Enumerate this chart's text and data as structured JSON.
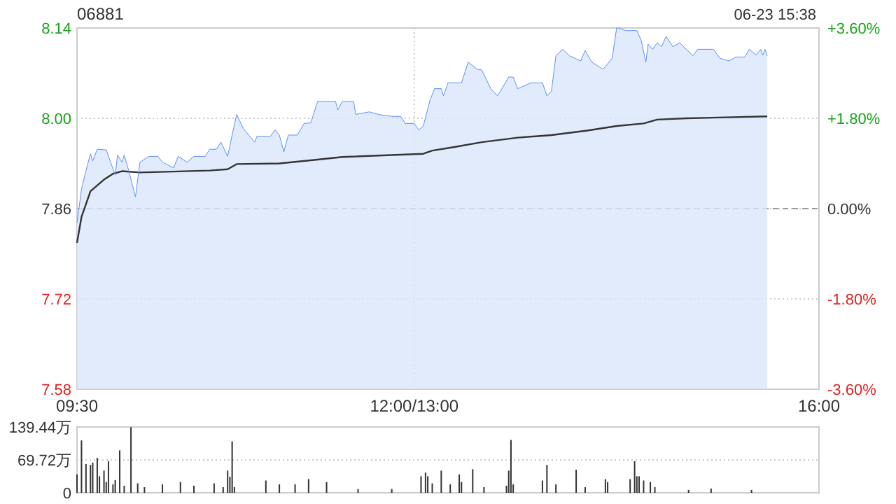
{
  "chart_data": [
    {
      "type": "line",
      "title": "06881",
      "annotations": [
        "06-23 15:38"
      ],
      "categories": [
        "09:30",
        null,
        null,
        null,
        null,
        null,
        null,
        null,
        null,
        null,
        null,
        null,
        null,
        null,
        null,
        null,
        null,
        null,
        null,
        null,
        null,
        null,
        null,
        null,
        null,
        null,
        null,
        null,
        null,
        null,
        null,
        null,
        null,
        null,
        null,
        null,
        null,
        null,
        null,
        null,
        null,
        null,
        null,
        null,
        null,
        null,
        null,
        null,
        null,
        null,
        null,
        null,
        null,
        null,
        null,
        null,
        null,
        null,
        null,
        null,
        null,
        null,
        null,
        null,
        null,
        null,
        null,
        null,
        null,
        null,
        null,
        null,
        null,
        null,
        null,
        null,
        null,
        null,
        null,
        null,
        null,
        null,
        null,
        null,
        null,
        null,
        null,
        null,
        null,
        null,
        null,
        null,
        null,
        null,
        null,
        null,
        null,
        null,
        null,
        null,
        null,
        null,
        null,
        null,
        null,
        null,
        null,
        null,
        null,
        null,
        null,
        null,
        null,
        null,
        null,
        null,
        null,
        null,
        null,
        null,
        null,
        null,
        null,
        null,
        null,
        null,
        null,
        null,
        null,
        null,
        null,
        null,
        null,
        null,
        null,
        null,
        null,
        null,
        null,
        null,
        null,
        null,
        null,
        null,
        null,
        null,
        null,
        null,
        null,
        null,
        "12:00/13:00",
        null,
        null,
        null,
        null,
        null,
        null,
        null,
        null,
        null,
        null,
        null,
        null,
        null,
        null,
        null,
        null,
        null,
        null,
        null,
        null,
        null,
        null,
        null,
        null,
        null,
        null,
        null,
        null,
        null,
        null,
        null,
        null,
        null,
        null,
        null,
        null,
        null,
        null,
        null,
        null,
        null,
        null,
        null,
        null,
        null,
        null,
        null,
        null,
        null,
        null,
        null,
        null,
        null,
        null,
        null,
        null,
        null,
        null,
        null,
        null,
        null,
        null,
        null,
        null,
        null,
        null,
        null,
        null,
        null,
        null,
        null,
        null,
        null,
        null,
        null,
        null,
        null,
        null,
        null,
        null,
        null,
        null,
        null,
        null,
        null,
        null,
        null,
        null,
        null,
        null,
        null,
        null,
        null,
        null,
        null,
        null,
        null,
        null,
        null,
        null,
        null,
        null,
        null,
        null,
        null,
        null,
        null,
        null,
        null,
        null,
        null,
        null,
        null,
        null,
        null,
        null,
        null,
        null,
        null,
        null,
        null,
        null,
        null,
        null,
        null,
        null,
        null,
        null,
        null,
        null,
        null,
        null,
        null,
        null,
        null,
        null,
        null,
        null,
        null,
        null,
        null,
        null,
        null,
        null,
        null,
        null,
        null,
        null,
        null,
        null,
        null,
        null,
        null,
        null,
        null,
        null,
        null,
        null,
        null,
        null,
        null,
        null,
        null,
        null,
        null,
        null,
        null,
        null,
        null,
        null,
        null,
        null,
        null,
        null,
        null,
        null,
        null,
        null,
        null,
        "16:00"
      ],
      "ylim": [
        7.58,
        8.14
      ],
      "y2lim": [
        -3.6,
        3.6
      ],
      "yticks": [
        {
          "value": 7.58,
          "label": "7.58"
        },
        {
          "value": 7.72,
          "label": "7.72"
        },
        {
          "value": 7.86,
          "label": "7.86"
        },
        {
          "value": 8.0,
          "label": "8.00"
        },
        {
          "value": 8.14,
          "label": "8.14"
        }
      ],
      "y2ticks": [
        {
          "value": -3.6,
          "label": "-3.60%"
        },
        {
          "value": -1.8,
          "label": "-1.80%"
        },
        {
          "value": 0,
          "label": "0.00%"
        },
        {
          "value": 1.8,
          "label": "+1.80%"
        },
        {
          "value": 3.6,
          "label": "+3.60%"
        }
      ],
      "grid": true,
      "ref_lines": [
        {
          "axis": "y",
          "value": 7.86,
          "line_style": "dashed",
          "color": "#999999"
        }
      ],
      "series": [
        {
          "type": "area",
          "color": "#5b8ff9",
          "values": [
            7.838,
            null,
            7.89,
            null,
            7.919,
            null,
            7.945,
            7.934,
            null,
            7.952,
            null,
            null,
            null,
            7.951,
            null,
            null,
            null,
            7.912,
            7.943,
            null,
            7.932,
            7.943,
            null,
            7.919,
            null,
            null,
            7.878,
            null,
            7.932,
            null,
            null,
            null,
            7.941,
            null,
            null,
            null,
            7.941,
            null,
            7.932,
            null,
            null,
            null,
            null,
            7.923,
            null,
            7.941,
            null,
            null,
            null,
            7.932,
            null,
            null,
            7.941,
            null,
            null,
            null,
            null,
            7.941,
            null,
            7.952,
            null,
            null,
            7.952,
            null,
            7.963,
            null,
            null,
            7.941,
            null,
            7.974,
            null,
            8.006,
            null,
            null,
            7.984,
            null,
            null,
            null,
            null,
            7.963,
            7.972,
            null,
            null,
            null,
            null,
            null,
            7.972,
            null,
            7.982,
            null,
            7.974,
            null,
            7.948,
            null,
            7.974,
            null,
            null,
            null,
            7.974,
            null,
            null,
            7.992,
            null,
            null,
            7.993,
            null,
            null,
            8.026,
            null,
            null,
            null,
            null,
            null,
            null,
            null,
            8.026,
            8.013,
            null,
            8.026,
            null,
            null,
            null,
            null,
            8.026,
            8.006,
            null,
            null,
            null,
            null,
            null,
            8.01,
            null,
            null,
            null,
            8.006,
            null,
            null,
            null,
            null,
            null,
            8.003,
            null,
            null,
            null,
            8.003,
            null,
            7.992,
            null,
            null,
            null,
            7.992,
            null,
            7.982,
            null,
            7.988,
            null,
            null,
            8.028,
            null,
            8.046,
            null,
            null,
            8.046,
            8.035,
            null,
            8.055,
            null,
            null,
            null,
            null,
            null,
            8.055,
            null,
            null,
            8.087,
            null,
            null,
            null,
            8.076,
            null,
            8.075,
            null,
            null,
            null,
            8.046,
            null,
            null,
            8.035,
            null,
            8.046,
            null,
            null,
            8.064,
            null,
            8.064,
            null,
            8.046,
            null,
            null,
            null,
            null,
            null,
            8.055,
            null,
            null,
            null,
            null,
            8.055,
            null,
            8.035,
            null,
            8.042,
            null,
            8.097,
            null,
            null,
            8.107,
            null,
            null,
            8.097,
            null,
            null,
            null,
            null,
            8.089,
            null,
            8.105,
            null,
            null,
            8.087,
            null,
            null,
            null,
            null,
            8.076,
            null,
            null,
            null,
            8.093,
            null,
            8.14,
            8.14,
            null,
            null,
            8.136,
            null,
            null,
            null,
            null,
            8.136,
            null,
            8.12,
            null,
            8.087,
            8.115,
            null,
            8.107,
            null,
            8.117,
            null,
            8.111,
            null,
            8.127,
            null,
            null,
            8.111,
            null,
            null,
            8.117,
            null,
            null,
            null,
            null,
            null,
            8.097,
            null,
            8.107,
            null,
            null,
            null,
            null,
            null,
            null,
            8.107,
            null,
            null,
            8.093,
            null,
            null,
            null,
            8.089,
            null,
            null,
            8.095,
            null,
            null,
            null,
            8.095,
            null,
            8.107,
            null,
            null,
            8.098,
            null,
            8.107,
            8.098,
            8.107,
            8.097,
            null,
            null,
            null,
            null,
            null,
            null,
            null,
            null,
            null,
            null,
            null,
            null,
            null,
            null,
            null,
            null,
            null,
            null,
            null,
            null,
            null,
            null,
            null
          ]
        },
        {
          "type": "line",
          "color": "#333333",
          "values": [
            7.807,
            null,
            7.847,
            null,
            null,
            null,
            7.887,
            null,
            null,
            null,
            null,
            null,
            7.905,
            null,
            null,
            null,
            7.914,
            null,
            null,
            null,
            7.918,
            null,
            null,
            null,
            null,
            null,
            null,
            null,
            7.916,
            null,
            null,
            null,
            null,
            null,
            null,
            null,
            null,
            null,
            null,
            null,
            null,
            null,
            null,
            null,
            null,
            null,
            null,
            null,
            null,
            null,
            null,
            null,
            null,
            null,
            null,
            null,
            null,
            null,
            null,
            7.919,
            null,
            null,
            null,
            null,
            null,
            null,
            null,
            7.921,
            null,
            null,
            null,
            7.929,
            null,
            null,
            null,
            null,
            null,
            null,
            null,
            null,
            null,
            null,
            null,
            null,
            null,
            null,
            null,
            null,
            null,
            null,
            7.93,
            null,
            null,
            null,
            null,
            null,
            null,
            null,
            null,
            null,
            null,
            null,
            null,
            null,
            null,
            null,
            null,
            7.936,
            null,
            null,
            null,
            null,
            null,
            null,
            null,
            null,
            null,
            null,
            7.94,
            null,
            null,
            null,
            null,
            null,
            null,
            null,
            null,
            null,
            null,
            null,
            null,
            null,
            null,
            null,
            null,
            null,
            null,
            null,
            null,
            null,
            null,
            null,
            null,
            null,
            null,
            null,
            null,
            null,
            null,
            null,
            null,
            null,
            null,
            null,
            7.945,
            null,
            null,
            null,
            7.95,
            null,
            null,
            null,
            null,
            null,
            null,
            null,
            null,
            7.955,
            null,
            null,
            null,
            null,
            null,
            null,
            null,
            null,
            null,
            null,
            null,
            null,
            7.963,
            null,
            null,
            null,
            null,
            null,
            null,
            null,
            null,
            null,
            null,
            null,
            null,
            null,
            null,
            null,
            7.97,
            null,
            null,
            null,
            null,
            null,
            null,
            null,
            null,
            null,
            null,
            null,
            null,
            null,
            null,
            7.974,
            null,
            null,
            null,
            null,
            null,
            null,
            null,
            null,
            null,
            null,
            null,
            null,
            null,
            null,
            null,
            7.981,
            null,
            null,
            null,
            null,
            null,
            null,
            null,
            null,
            null,
            null,
            null,
            null,
            7.988,
            null,
            null,
            null,
            null,
            null,
            null,
            null,
            null,
            null,
            null,
            null,
            7.992,
            null,
            null,
            null,
            null,
            null,
            7.998,
            null,
            null,
            null,
            null,
            null,
            null,
            null,
            null,
            null,
            null,
            null,
            null,
            8.0,
            null,
            null,
            null,
            null,
            null,
            null,
            null,
            null,
            null,
            null,
            null,
            null,
            null,
            null,
            null,
            null,
            null,
            null,
            null,
            null,
            null,
            null,
            null,
            null,
            null,
            null,
            null,
            null,
            null,
            null,
            null,
            null,
            null,
            null,
            null,
            8.003,
            null,
            null,
            null,
            null,
            null,
            null,
            null,
            null,
            null,
            null,
            null,
            null,
            null,
            null,
            null,
            null,
            null,
            null,
            null,
            null,
            null,
            null,
            null
          ]
        }
      ]
    },
    {
      "type": "bar",
      "color": "#333333",
      "tick_labels": "y",
      "grid": "y",
      "categories": [
        null,
        null,
        null,
        null,
        null,
        null,
        null,
        null,
        null,
        null,
        null,
        null,
        null,
        null,
        null,
        null,
        null,
        null,
        null,
        null,
        null,
        null,
        null,
        null,
        null,
        null,
        null,
        null,
        null,
        null,
        null,
        null,
        null,
        null,
        null,
        null,
        null,
        null,
        null,
        null,
        null,
        null,
        null,
        null,
        null,
        null,
        null,
        null,
        null,
        null,
        null,
        null,
        null,
        null,
        null,
        null,
        null,
        null,
        null,
        null,
        null,
        null,
        null,
        null,
        null,
        null,
        null,
        null,
        null,
        null,
        null,
        null,
        null,
        null,
        null,
        null,
        null,
        null,
        null,
        null,
        null,
        null,
        null,
        null,
        null,
        null,
        null,
        null,
        null,
        null,
        null,
        null,
        null,
        null,
        null,
        null,
        null,
        null,
        null,
        null,
        null,
        null,
        null,
        null,
        null,
        null,
        null,
        null,
        null,
        null,
        null,
        null,
        null,
        null,
        null,
        null,
        null,
        null,
        null,
        null,
        null,
        null,
        null,
        null,
        null,
        null,
        null,
        null,
        null,
        null,
        null,
        null,
        null,
        null,
        null,
        null,
        null,
        null,
        null,
        null,
        null,
        null,
        null,
        null,
        null,
        null,
        null,
        null,
        null,
        null,
        null,
        null,
        null,
        null,
        null,
        null,
        null,
        null,
        null,
        null,
        null,
        null,
        null,
        null,
        null,
        null,
        null,
        null,
        null,
        null,
        null,
        null,
        null,
        null,
        null,
        null,
        null,
        null,
        null,
        null,
        null,
        null,
        null,
        null,
        null,
        null,
        null,
        null,
        null,
        null,
        null,
        null,
        null,
        null,
        null,
        null,
        null,
        null,
        null,
        null,
        null,
        null,
        null,
        null,
        null,
        null,
        null,
        null,
        null,
        null,
        null,
        null,
        null,
        null,
        null,
        null,
        null,
        null,
        null,
        null,
        null,
        null,
        null,
        null,
        null,
        null,
        null,
        null,
        null,
        null,
        null,
        null,
        null,
        null,
        null,
        null,
        null,
        null,
        null,
        null,
        null,
        null,
        null,
        null,
        null,
        null,
        null,
        null,
        null,
        null,
        null,
        null,
        null,
        null,
        null,
        null,
        null,
        null,
        null,
        null,
        null,
        null,
        null,
        null,
        null,
        null,
        null,
        null,
        null,
        null,
        null,
        null,
        null,
        null,
        null,
        null,
        null,
        null,
        null,
        null,
        null,
        null,
        null,
        null,
        null,
        null,
        null,
        null,
        null,
        null,
        null,
        null,
        null,
        null,
        null,
        null,
        null,
        null,
        null,
        null,
        null,
        null,
        null,
        null,
        null,
        null,
        null,
        null,
        null,
        null,
        null,
        null,
        null,
        null,
        null,
        null,
        null,
        null,
        null,
        null,
        null,
        null,
        null,
        null,
        null,
        null,
        null,
        null,
        null,
        null,
        null
      ],
      "ylim": [
        0,
        139.44
      ],
      "yticks": [
        {
          "value": 0,
          "label": "0"
        },
        {
          "value": 69.72,
          "label": "69.72万"
        },
        {
          "value": 139.44,
          "label": "139.44万"
        }
      ],
      "values": [
        39,
        null,
        111,
        null,
        61,
        null,
        59,
        64,
        null,
        74,
        35,
        null,
        47,
        23,
        67,
        null,
        18,
        27,
        null,
        90,
        null,
        15,
        null,
        null,
        139,
        null,
        null,
        20,
        null,
        null,
        12,
        null,
        null,
        null,
        null,
        null,
        null,
        null,
        18,
        null,
        null,
        null,
        null,
        null,
        null,
        null,
        23,
        null,
        null,
        null,
        null,
        null,
        15,
        null,
        null,
        null,
        null,
        null,
        null,
        null,
        null,
        20,
        null,
        null,
        null,
        12,
        null,
        47,
        34,
        109,
        12,
        null,
        null,
        null,
        null,
        null,
        null,
        null,
        null,
        null,
        null,
        null,
        null,
        null,
        26,
        null,
        null,
        null,
        null,
        null,
        18,
        null,
        null,
        null,
        null,
        null,
        null,
        18,
        null,
        null,
        null,
        null,
        null,
        29,
        null,
        null,
        null,
        null,
        null,
        null,
        null,
        23,
        null,
        null,
        null,
        null,
        null,
        null,
        null,
        null,
        null,
        null,
        null,
        null,
        null,
        8,
        null,
        null,
        null,
        null,
        null,
        null,
        null,
        null,
        null,
        null,
        null,
        null,
        null,
        null,
        8,
        null,
        null,
        null,
        null,
        null,
        null,
        null,
        null,
        null,
        null,
        null,
        null,
        35,
        null,
        43,
        35,
        null,
        20,
        null,
        null,
        null,
        47,
        null,
        null,
        null,
        18,
        null,
        null,
        null,
        39,
        23,
        null,
        null,
        null,
        null,
        50,
        null,
        null,
        null,
        null,
        12,
        null,
        null,
        null,
        null,
        null,
        null,
        null,
        null,
        null,
        15,
        47,
        112,
        18,
        null,
        null,
        null,
        null,
        null,
        null,
        null,
        null,
        null,
        null,
        null,
        null,
        26,
        null,
        59,
        null,
        null,
        null,
        18,
        null,
        null,
        null,
        null,
        null,
        null,
        null,
        null,
        49,
        null,
        null,
        null,
        12,
        null,
        null,
        null,
        null,
        null,
        null,
        null,
        null,
        29,
        23,
        null,
        null,
        null,
        null,
        null,
        null,
        null,
        null,
        null,
        29,
        null,
        67,
        35,
        35,
        null,
        26,
        null,
        null,
        23,
        null,
        12,
        null,
        null,
        null,
        null,
        null,
        null,
        null,
        null,
        null,
        null,
        null,
        null,
        null,
        null,
        6,
        null,
        null,
        null,
        null,
        null,
        null,
        null,
        null,
        null,
        9,
        null,
        null,
        null,
        null,
        null,
        null,
        null,
        null,
        null,
        null,
        null,
        null,
        null,
        null,
        null,
        null,
        null,
        6,
        null,
        null,
        null,
        null,
        null,
        null,
        null,
        null,
        null,
        null,
        null,
        null,
        null,
        null,
        null,
        null,
        null,
        null,
        null,
        null,
        null,
        null,
        null,
        null,
        null,
        null,
        null,
        null,
        null,
        null
      ]
    }
  ]
}
